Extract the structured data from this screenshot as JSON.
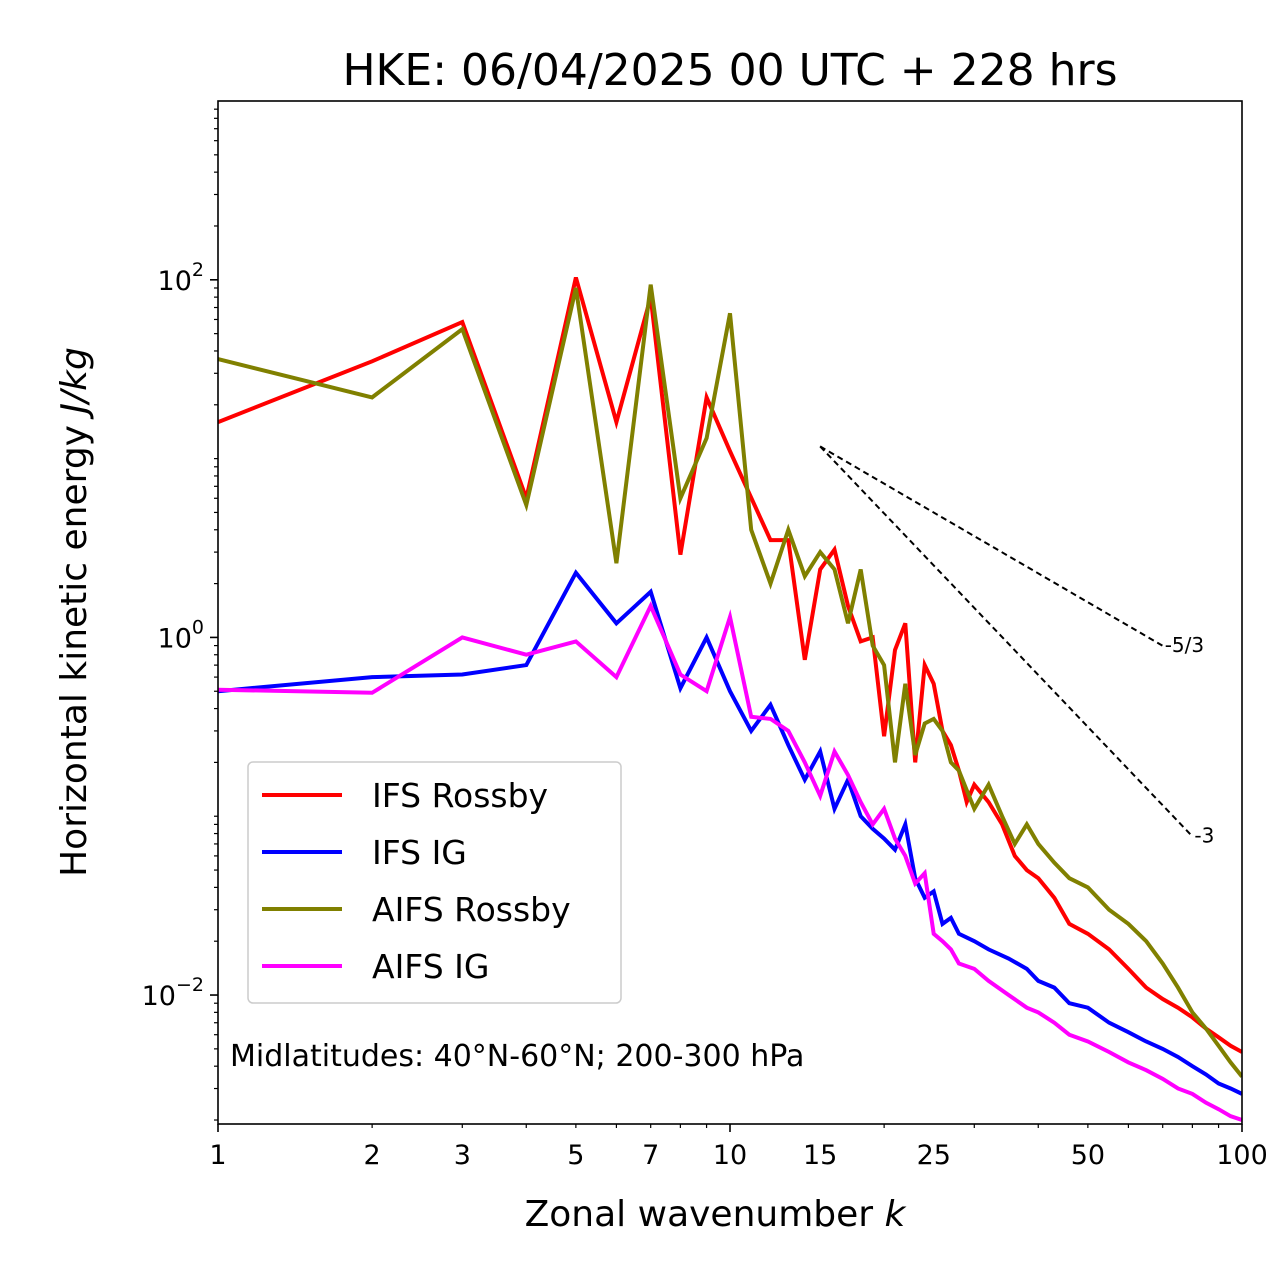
{
  "chart_data": {
    "type": "line",
    "title": "HKE: 06/04/2025 00 UTC + 228 hrs",
    "xlabel": "Zonal wavenumber",
    "xlabel_var": "k",
    "ylabel": "Horizontal kinetic energy",
    "ylabel_unit": "J/kg",
    "x_scale": "log",
    "y_scale": "log",
    "xlim": [
      1,
      100
    ],
    "ylim": [
      0.0019,
      1000
    ],
    "x_ticks": [
      1,
      2,
      3,
      5,
      7,
      10,
      15,
      25,
      50,
      100
    ],
    "x_tick_labels": [
      "1",
      "2",
      "3",
      "5",
      "7",
      "10",
      "15",
      "25",
      "50",
      "100"
    ],
    "y_ticks": [
      100,
      1,
      0.01
    ],
    "y_tick_labels": [
      {
        "base": "10",
        "exp": "2"
      },
      {
        "base": "10",
        "exp": "0"
      },
      {
        "base": "10",
        "exp": "−2"
      }
    ],
    "grid": false,
    "legend_position": "lower-left",
    "annotation": "Midlatitudes: 40°N-60°N; 200-300 hPa",
    "reference_slopes": [
      {
        "label": "-5/3",
        "x_start": 15,
        "x_end": 70,
        "y_start": 11.7
      },
      {
        "label": "-3",
        "x_start": 15,
        "x_end": 80,
        "y_start": 11.7
      }
    ],
    "series": [
      {
        "name": "IFS Rossby",
        "color": "#ff0000",
        "x": [
          1,
          2,
          3,
          4,
          5,
          6,
          7,
          8,
          9,
          10,
          12,
          13,
          14,
          15,
          16,
          17,
          18,
          19,
          20,
          21,
          22,
          23,
          24,
          25,
          26,
          27,
          28,
          29,
          30,
          32,
          34,
          36,
          38,
          40,
          43,
          46,
          50,
          55,
          60,
          65,
          70,
          75,
          80,
          85,
          90,
          95,
          100
        ],
        "y": [
          16,
          35,
          58,
          6,
          103,
          16,
          80,
          2.9,
          22,
          11,
          3.5,
          3.5,
          0.75,
          2.4,
          3.1,
          1.5,
          0.95,
          1.0,
          0.28,
          0.85,
          1.2,
          0.2,
          0.7,
          0.55,
          0.3,
          0.25,
          0.18,
          0.12,
          0.15,
          0.12,
          0.09,
          0.06,
          0.05,
          0.045,
          0.035,
          0.025,
          0.022,
          0.018,
          0.014,
          0.011,
          0.0095,
          0.0085,
          0.0075,
          0.0065,
          0.0058,
          0.0052,
          0.0048
        ]
      },
      {
        "name": "IFS IG",
        "color": "#0000ff",
        "x": [
          1,
          2,
          3,
          4,
          5,
          6,
          7,
          8,
          9,
          10,
          11,
          12,
          13,
          14,
          15,
          16,
          17,
          18,
          19,
          20,
          21,
          22,
          23,
          24,
          25,
          26,
          27,
          28,
          30,
          32,
          35,
          38,
          40,
          43,
          46,
          50,
          55,
          60,
          65,
          70,
          75,
          80,
          85,
          90,
          95,
          100
        ],
        "y": [
          0.5,
          0.6,
          0.62,
          0.7,
          2.3,
          1.2,
          1.8,
          0.52,
          1.0,
          0.5,
          0.3,
          0.42,
          0.25,
          0.16,
          0.23,
          0.11,
          0.16,
          0.1,
          0.085,
          0.075,
          0.065,
          0.09,
          0.045,
          0.035,
          0.038,
          0.025,
          0.027,
          0.022,
          0.02,
          0.018,
          0.016,
          0.014,
          0.012,
          0.011,
          0.009,
          0.0085,
          0.007,
          0.0062,
          0.0055,
          0.005,
          0.0045,
          0.004,
          0.0036,
          0.0032,
          0.003,
          0.0028
        ]
      },
      {
        "name": "AIFS Rossby",
        "color": "#808000",
        "x": [
          1,
          2,
          3,
          4,
          5,
          6,
          7,
          8,
          9,
          10,
          11,
          12,
          13,
          14,
          15,
          16,
          17,
          18,
          19,
          20,
          21,
          22,
          23,
          24,
          25,
          26,
          27,
          28,
          29,
          30,
          32,
          34,
          36,
          38,
          40,
          43,
          46,
          50,
          55,
          60,
          65,
          70,
          75,
          80,
          85,
          90,
          95,
          100
        ],
        "y": [
          36,
          22,
          53,
          5.5,
          90,
          2.6,
          94,
          6,
          13,
          65,
          4,
          2,
          4,
          2.2,
          3,
          2.4,
          1.2,
          2.4,
          0.9,
          0.7,
          0.2,
          0.55,
          0.22,
          0.33,
          0.35,
          0.3,
          0.2,
          0.18,
          0.14,
          0.11,
          0.15,
          0.1,
          0.07,
          0.09,
          0.07,
          0.055,
          0.045,
          0.04,
          0.03,
          0.025,
          0.02,
          0.015,
          0.011,
          0.008,
          0.0065,
          0.0052,
          0.0042,
          0.0035
        ]
      },
      {
        "name": "AIFS IG",
        "color": "#ff00ff",
        "x": [
          1,
          2,
          3,
          4,
          5,
          6,
          7,
          8,
          9,
          10,
          11,
          12,
          13,
          14,
          15,
          16,
          17,
          18,
          19,
          20,
          21,
          22,
          23,
          24,
          25,
          26,
          27,
          28,
          30,
          32,
          35,
          38,
          40,
          43,
          46,
          50,
          55,
          60,
          65,
          70,
          75,
          80,
          85,
          90,
          95,
          100
        ],
        "y": [
          0.51,
          0.49,
          1.0,
          0.8,
          0.95,
          0.6,
          1.5,
          0.62,
          0.5,
          1.3,
          0.36,
          0.35,
          0.3,
          0.2,
          0.13,
          0.23,
          0.17,
          0.12,
          0.09,
          0.11,
          0.075,
          0.06,
          0.042,
          0.048,
          0.022,
          0.02,
          0.018,
          0.015,
          0.014,
          0.012,
          0.01,
          0.0085,
          0.008,
          0.007,
          0.006,
          0.0055,
          0.0048,
          0.0042,
          0.0038,
          0.0034,
          0.003,
          0.0028,
          0.0025,
          0.0023,
          0.0021,
          0.002
        ]
      }
    ]
  }
}
